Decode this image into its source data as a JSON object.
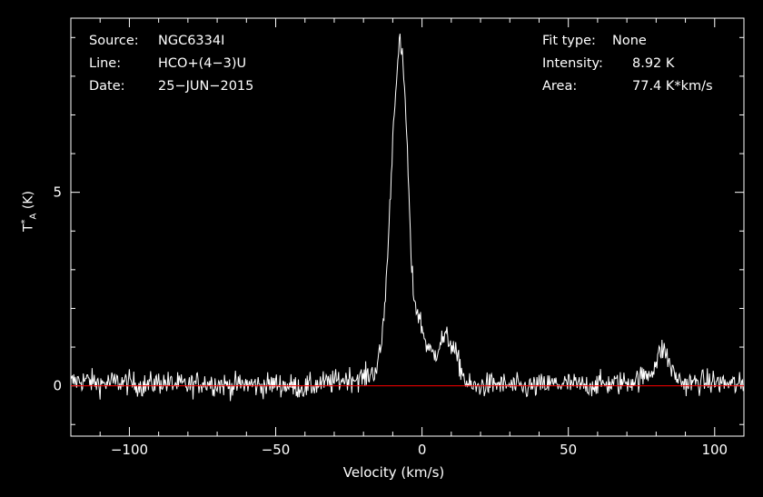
{
  "header": {
    "left": [
      {
        "label": "Source:",
        "value": "NGC6334I"
      },
      {
        "label": "Line:",
        "value": "HCO+(4−3)U"
      },
      {
        "label": "Date:",
        "value": "25−JUN−2015"
      }
    ],
    "right": [
      {
        "label": "Fit type:",
        "value": "None"
      },
      {
        "label": "Intensity:",
        "value": "8.92 K"
      },
      {
        "label": "Area:",
        "value": "77.4 K*km/s"
      }
    ]
  },
  "chart_data": {
    "type": "line",
    "title": "",
    "xlabel": "Velocity (km/s)",
    "ylabel_main": "T",
    "ylabel_sub": "A",
    "ylabel_sup": "*",
    "ylabel_unit": "(K)",
    "xlim": [
      -120,
      110
    ],
    "ylim": [
      -1.3,
      9.5
    ],
    "xticks": [
      {
        "value": -100,
        "label": "−100"
      },
      {
        "value": -50,
        "label": "−50"
      },
      {
        "value": 0,
        "label": "0"
      },
      {
        "value": 50,
        "label": "50"
      },
      {
        "value": 100,
        "label": "100"
      }
    ],
    "yticks": [
      {
        "value": 0,
        "label": "0"
      },
      {
        "value": 5,
        "label": "5"
      }
    ],
    "baseline": 0,
    "series": [
      {
        "color": "#ffffff",
        "x": [
          -120,
          -115,
          -110,
          -105,
          -100,
          -95,
          -90,
          -85,
          -80,
          -75,
          -70,
          -65,
          -60,
          -55,
          -50,
          -45,
          -40,
          -35,
          -30,
          -25,
          -20,
          -18,
          -16,
          -15,
          -14,
          -13,
          -12,
          -11,
          -10,
          -9,
          -8,
          -7.5,
          -7,
          -6.5,
          -6,
          -5.5,
          -5,
          -4.5,
          -4,
          -3.5,
          -3,
          -2,
          -1,
          0,
          1,
          2,
          3,
          4,
          5,
          6,
          7,
          8,
          9,
          10,
          11,
          12,
          13,
          14,
          15,
          16,
          18,
          20,
          25,
          30,
          35,
          40,
          45,
          50,
          55,
          60,
          65,
          70,
          75,
          78,
          80,
          81,
          82,
          83,
          84,
          85,
          86,
          88,
          90,
          95,
          100,
          105,
          110
        ],
        "y": [
          0.1,
          0.15,
          0.05,
          0.1,
          0.08,
          0.0,
          0.1,
          0.05,
          0.0,
          0.1,
          0.05,
          0.0,
          0.05,
          0.0,
          0.05,
          0.0,
          -0.05,
          0.05,
          0.1,
          0.2,
          0.2,
          0.3,
          0.4,
          0.6,
          1.0,
          1.8,
          3.0,
          4.6,
          6.4,
          7.8,
          8.5,
          8.92,
          8.6,
          8.2,
          7.7,
          7.0,
          6.0,
          5.0,
          3.8,
          3.0,
          2.5,
          2.0,
          1.8,
          1.5,
          1.2,
          1.0,
          0.85,
          0.8,
          0.9,
          1.1,
          1.2,
          1.25,
          1.2,
          1.1,
          0.9,
          0.7,
          0.5,
          0.3,
          0.1,
          0.0,
          -0.05,
          0.0,
          0.05,
          0.0,
          -0.05,
          0.0,
          0.05,
          0.05,
          0.0,
          0.05,
          0.05,
          0.1,
          0.2,
          0.35,
          0.6,
          0.8,
          0.95,
          0.9,
          0.7,
          0.5,
          0.3,
          0.15,
          0.05,
          0.1,
          0.1,
          0.05,
          0.0
        ]
      }
    ],
    "noise_rms": 0.22
  }
}
